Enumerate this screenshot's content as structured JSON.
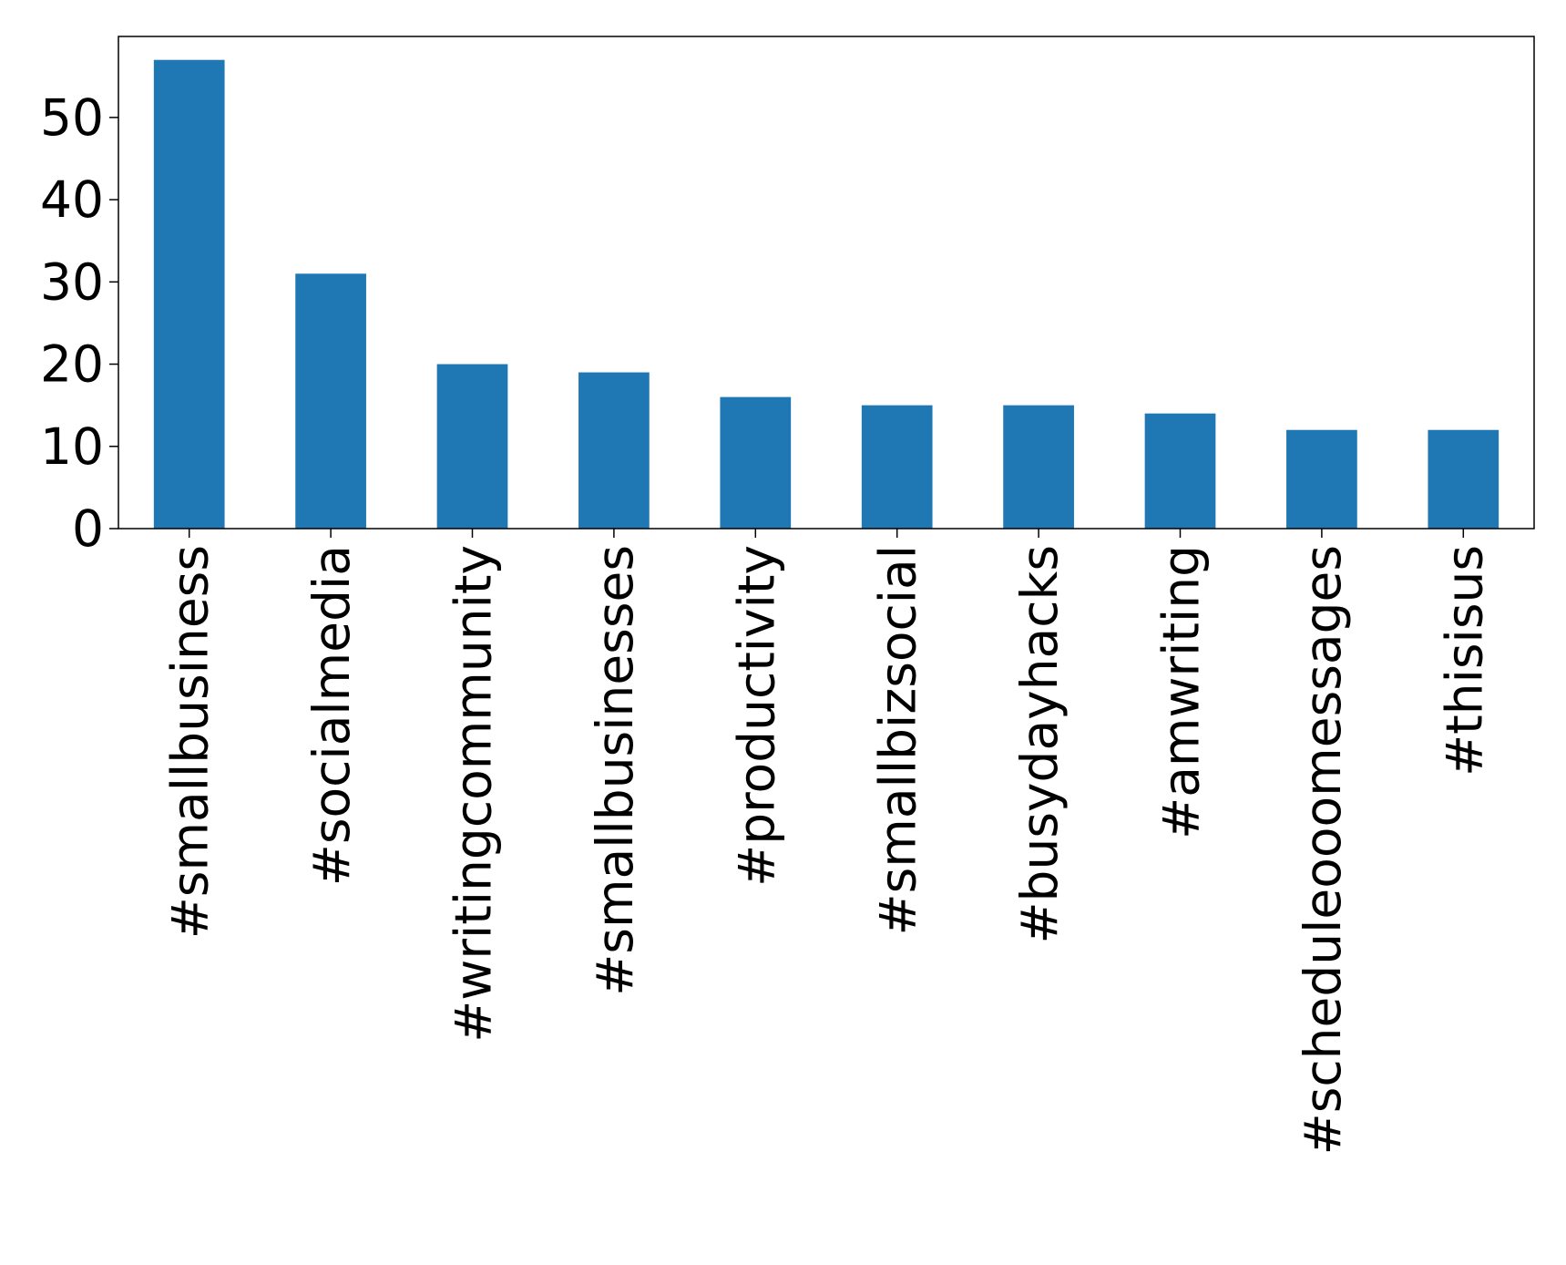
{
  "chart_data": {
    "type": "bar",
    "categories": [
      "#smallbusiness",
      "#socialmedia",
      "#writingcommunity",
      "#smallbusinesses",
      "#productivity",
      "#smallbizsocial",
      "#busydayhacks",
      "#amwriting",
      "#scheduleooomessages",
      "#thisisus"
    ],
    "values": [
      57,
      31,
      20,
      19,
      16,
      15,
      15,
      14,
      12,
      12
    ],
    "color": "#1f77b4",
    "ylim": [
      0,
      59.85
    ],
    "yticks": [
      0,
      10,
      20,
      30,
      40,
      50
    ],
    "grid": false
  }
}
